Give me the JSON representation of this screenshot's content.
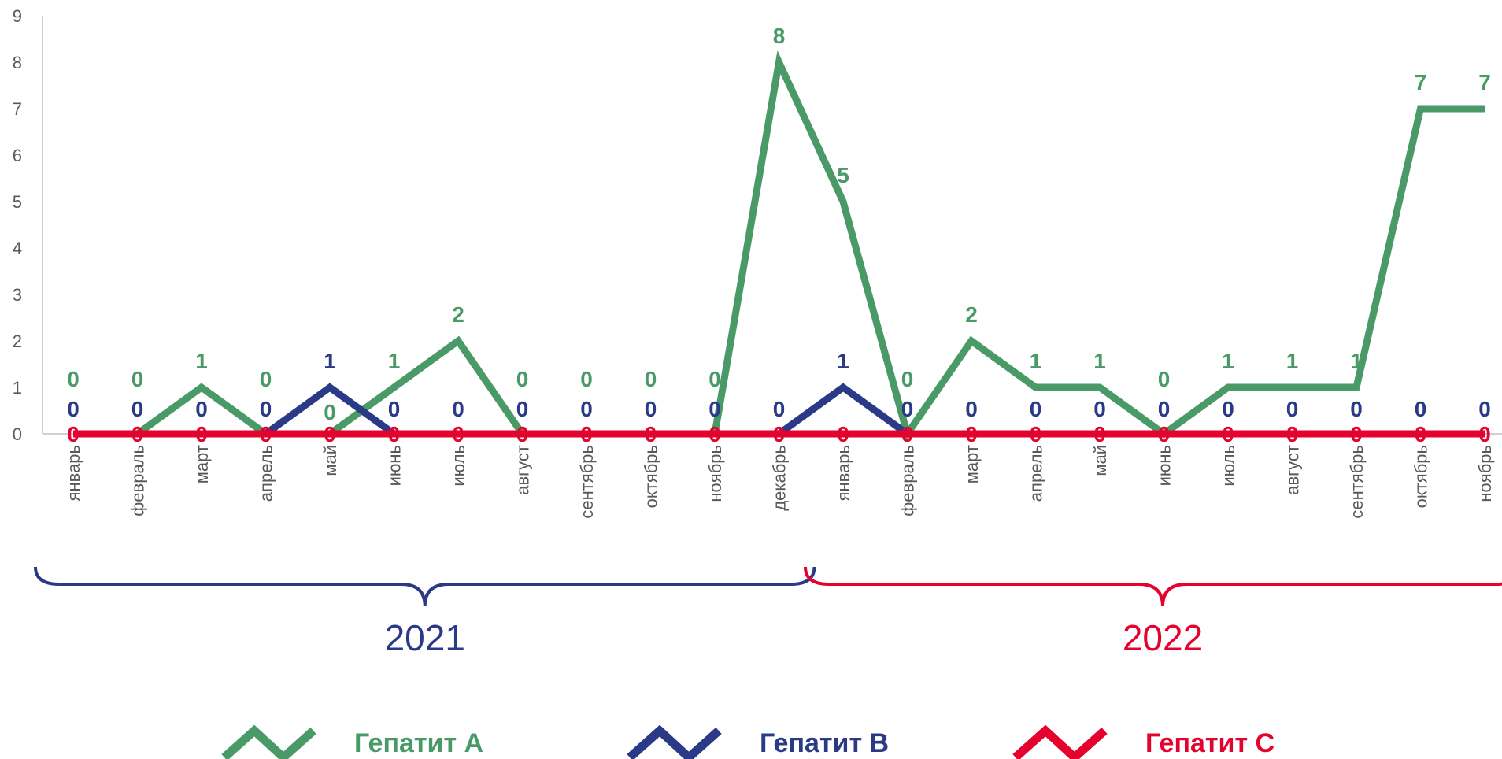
{
  "chart_data": {
    "type": "line",
    "title": "",
    "xlabel": "",
    "ylabel": "",
    "ylim": [
      0,
      9
    ],
    "yticks": [
      "0",
      "1",
      "2",
      "3",
      "4",
      "5",
      "6",
      "7",
      "8",
      "9"
    ],
    "grid": false,
    "legend_position": "bottom",
    "categories": [
      "январь",
      "февраль",
      "март",
      "апрель",
      "май",
      "июнь",
      "июль",
      "август",
      "сентябрь",
      "октябрь",
      "ноябрь",
      "декабрь",
      "январь",
      "февраль",
      "март",
      "апрель",
      "май",
      "июнь",
      "июль",
      "август",
      "сентябрь",
      "октябрь",
      "ноябрь"
    ],
    "groups": [
      {
        "label": "2021",
        "from": 0,
        "to": 11,
        "color": "#2a3a87"
      },
      {
        "label": "2022",
        "from": 12,
        "to": 22,
        "color": "#e4032e"
      }
    ],
    "series": [
      {
        "name": "Гепатит А",
        "color": "#4a9a68",
        "values": [
          0,
          0,
          1,
          0,
          0,
          1,
          2,
          0,
          0,
          0,
          0,
          8,
          5,
          0,
          2,
          1,
          1,
          0,
          1,
          1,
          1,
          7,
          7
        ]
      },
      {
        "name": "Гепатит В",
        "color": "#2a3a87",
        "values": [
          0,
          0,
          0,
          0,
          1,
          0,
          0,
          0,
          0,
          0,
          0,
          0,
          1,
          0,
          0,
          0,
          0,
          0,
          0,
          0,
          0,
          0,
          0
        ]
      },
      {
        "name": "Гепатит С",
        "color": "#e4032e",
        "values": [
          0,
          0,
          0,
          0,
          0,
          0,
          0,
          0,
          0,
          0,
          0,
          0,
          0,
          0,
          0,
          0,
          0,
          0,
          0,
          0,
          0,
          0,
          0
        ]
      }
    ]
  }
}
